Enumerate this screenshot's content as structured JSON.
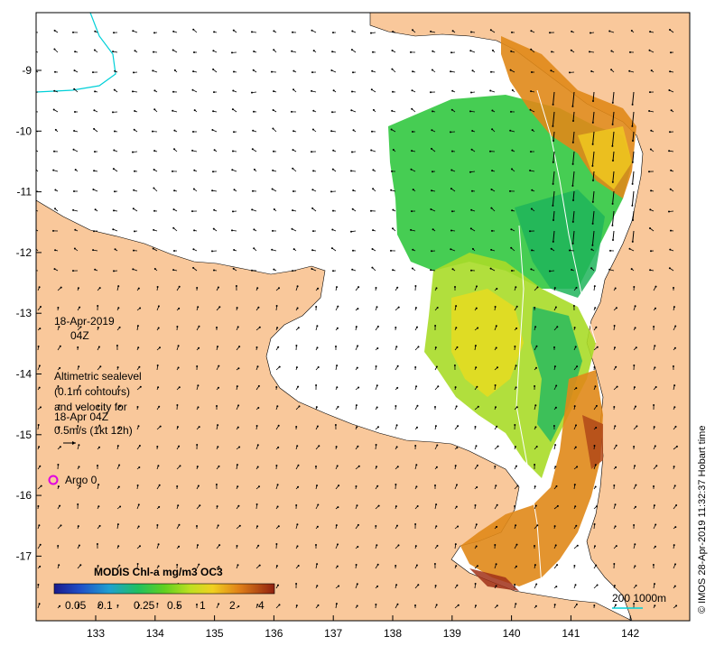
{
  "map": {
    "date": "18-Apr-2019",
    "time": "04Z",
    "legend_lines": [
      "Altimetric sealevel",
      "(0.1m contours)",
      "and velocity for",
      "18-Apr 04Z",
      "0.5m/s (1kt 12h)"
    ],
    "argo_label": "Argo 0",
    "colorbar_title": "MODIS Chl-a mg/m3 OC3",
    "colorbar_ticks": [
      "0.05",
      "0.1",
      "0.25",
      "0.5",
      "1",
      "2",
      "4"
    ],
    "scale_label": "200  1000m",
    "credit": "© IMOS 28-Apr-2019 11:32:37 Hobart time",
    "x_ticks": [
      "133",
      "134",
      "135",
      "136",
      "137",
      "138",
      "139",
      "140",
      "141",
      "142"
    ],
    "y_ticks": [
      "-9",
      "-10",
      "-11",
      "-12",
      "-13",
      "-14",
      "-15",
      "-16",
      "-17"
    ],
    "colors": {
      "land": "#f9c89b",
      "sea": "#ffffff",
      "frame": "#000000",
      "argo": "#e000e0",
      "contour": "#00d0d8"
    }
  }
}
